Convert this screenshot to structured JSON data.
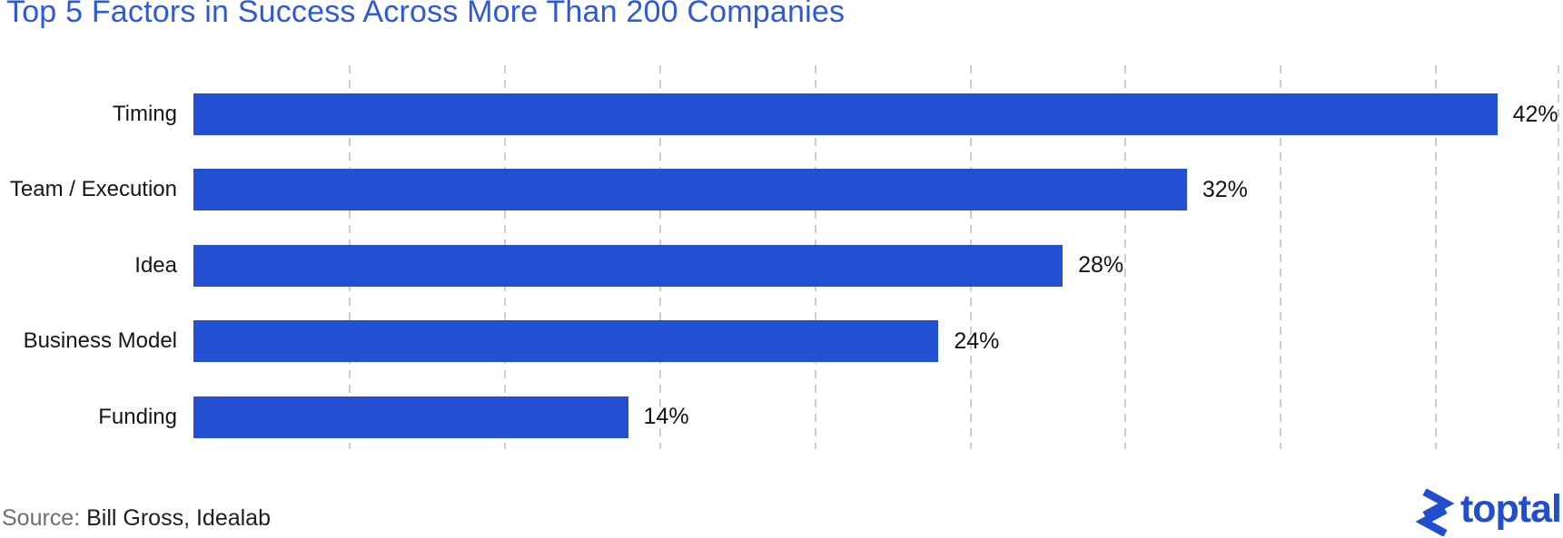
{
  "title": "Top 5 Factors in Success Across More Than 200 Companies",
  "chart_data": {
    "type": "bar",
    "orientation": "horizontal",
    "title": "Top 5 Factors in Success Across More Than 200 Companies",
    "categories": [
      "Timing",
      "Team / Execution",
      "Idea",
      "Business Model",
      "Funding"
    ],
    "values": [
      42,
      32,
      28,
      24,
      14
    ],
    "value_labels": [
      "42%",
      "32%",
      "28%",
      "24%",
      "14%"
    ],
    "xlabel": "",
    "ylabel": "",
    "xlim": [
      0,
      44
    ],
    "gridline_values": [
      5,
      10,
      15,
      20,
      25,
      30,
      35,
      40
    ],
    "grid": true,
    "right_border": true,
    "bar_color": "#2350d2",
    "gridline_color": "#cdcdcd",
    "title_color": "#2e59da"
  },
  "source": {
    "label": "Source:",
    "text": " Bill Gross, Idealab"
  },
  "logo": {
    "text": "toptal",
    "color": "#204ECF",
    "icon": "toptal-chevrons-icon"
  }
}
